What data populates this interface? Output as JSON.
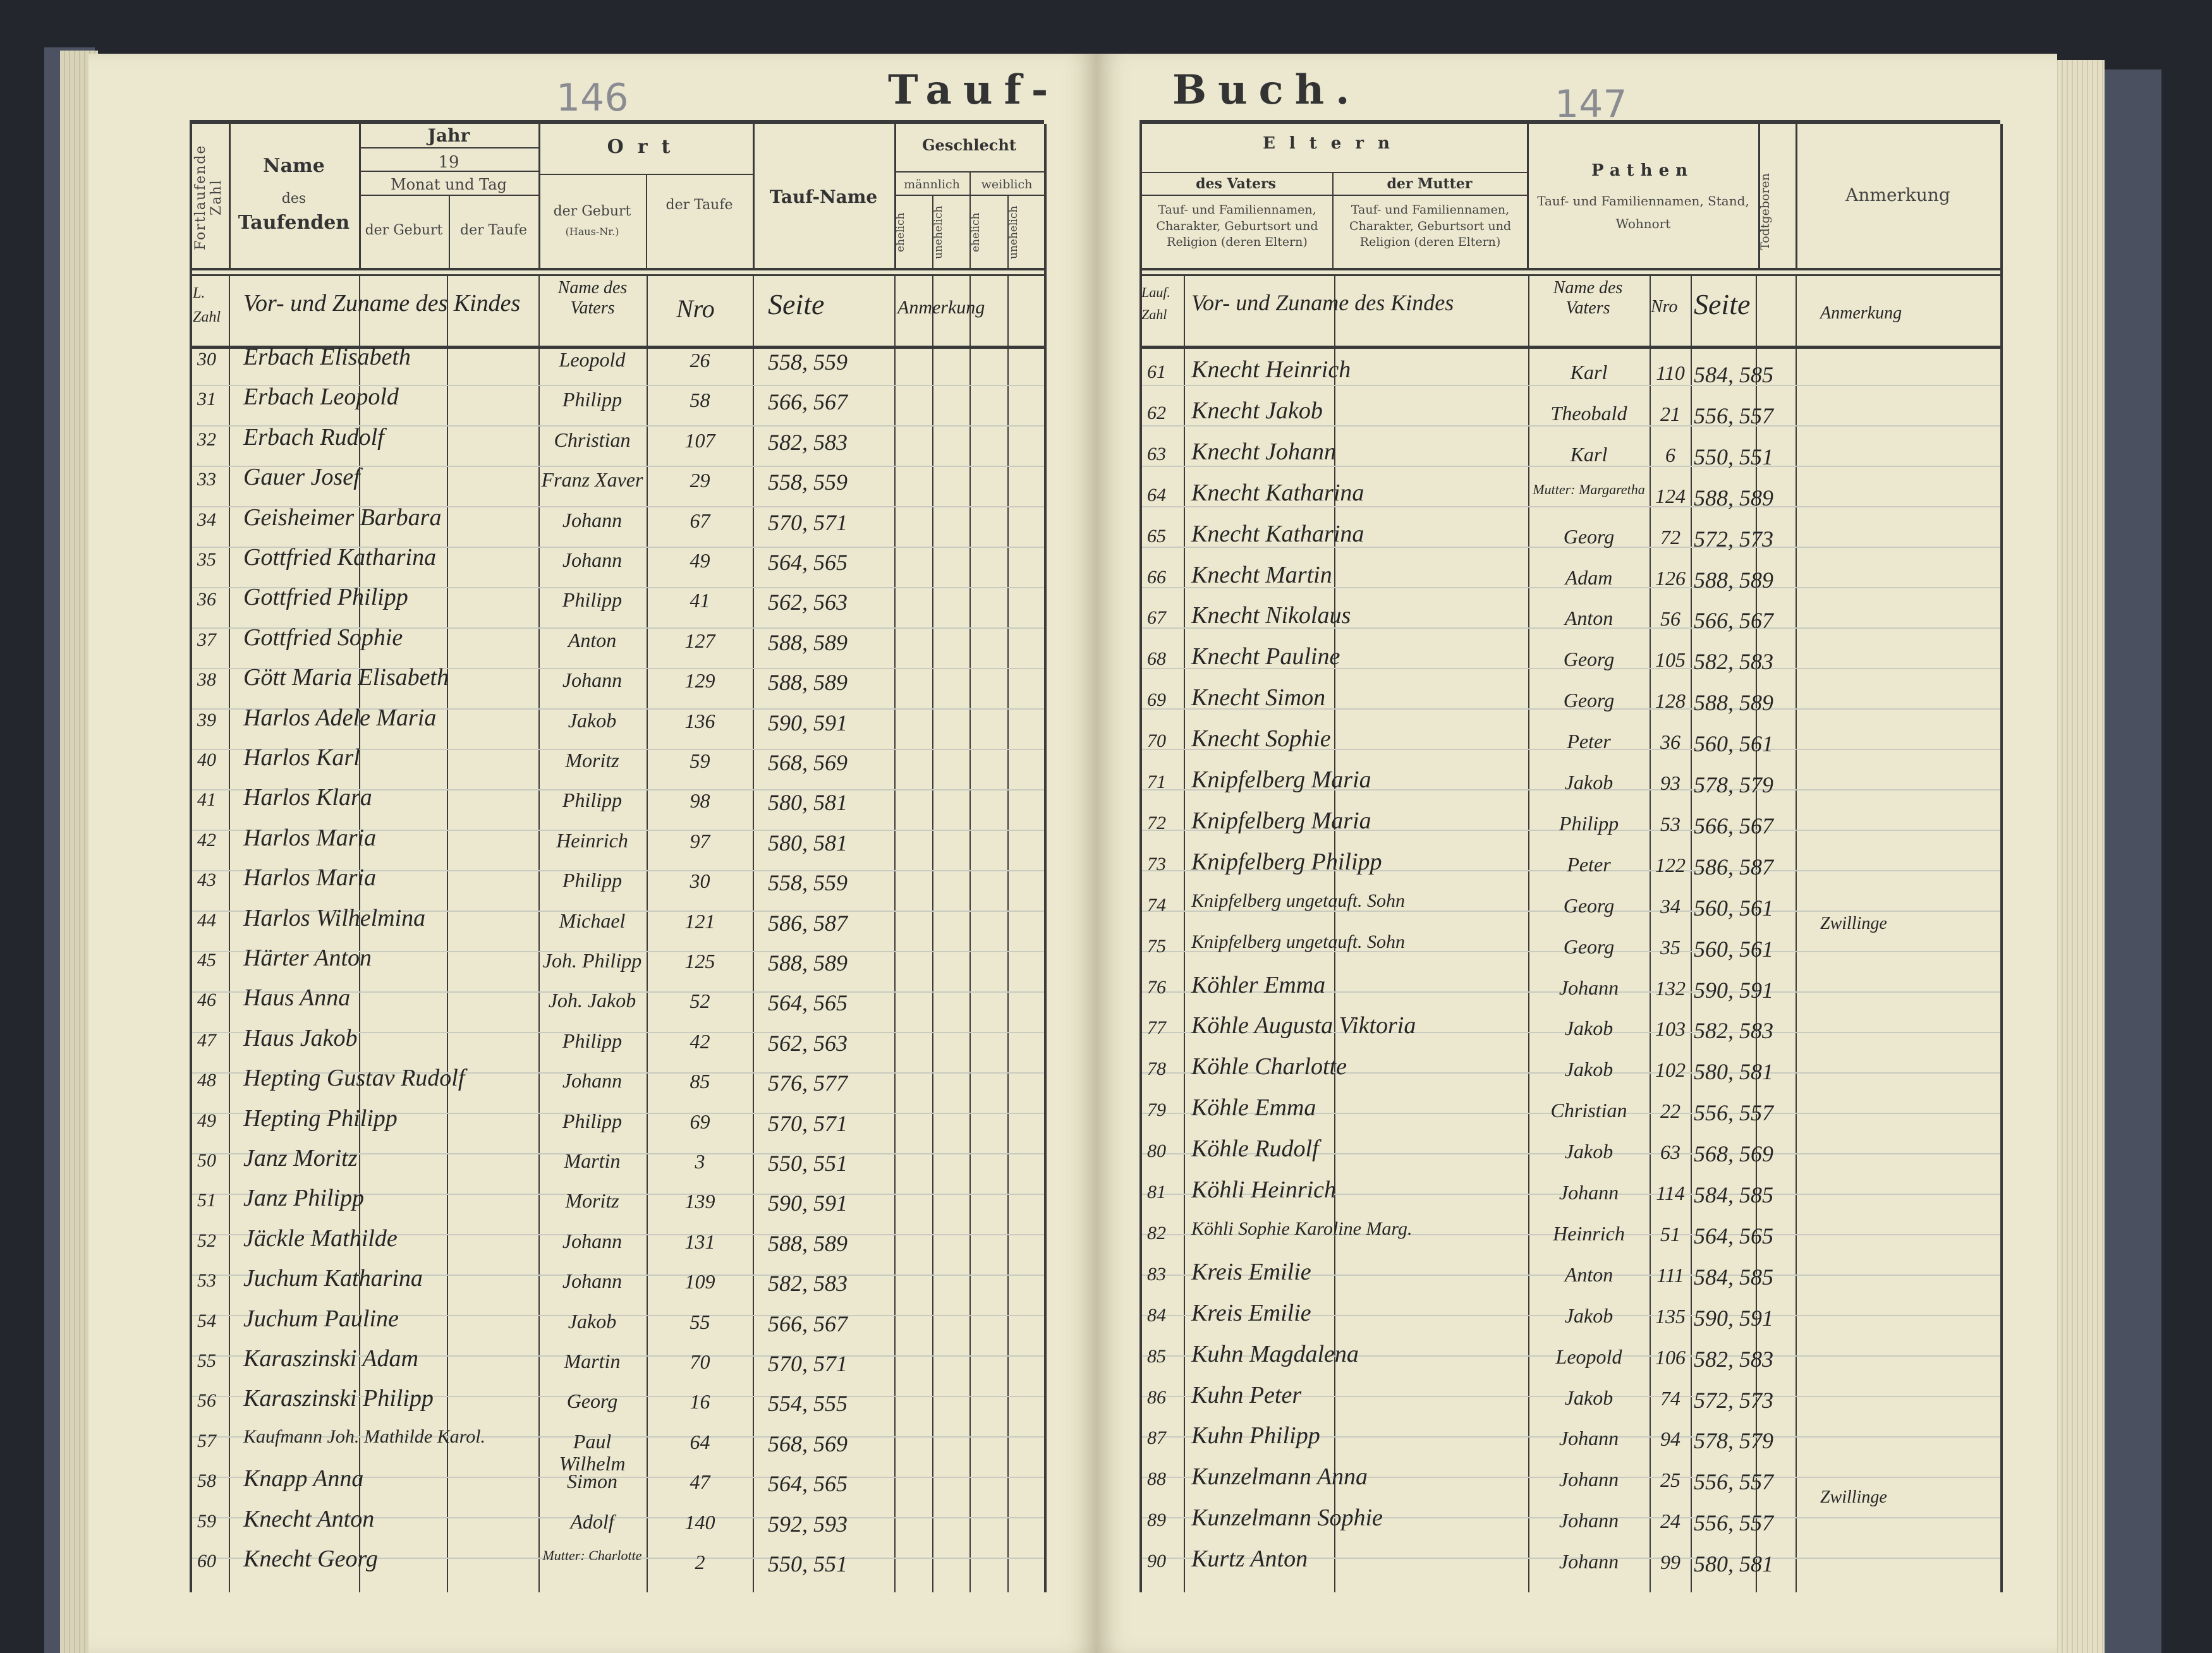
{
  "book_title": {
    "left": "Tauf-",
    "right": "Buch."
  },
  "page_numbers": {
    "left": "146",
    "right": "147"
  },
  "left_header": {
    "col_zahl": "Fortlaufende Zahl",
    "col_name": {
      "line1": "Name",
      "line2": "des",
      "line3": "Taufenden"
    },
    "col_jahr": {
      "title": "Jahr",
      "year": "19",
      "sub": "Monat und Tag",
      "geburt": "der Geburt",
      "taufe": "der Taufe"
    },
    "col_ort": {
      "title": "Ort",
      "geburt": "der Geburt",
      "hausnr": "(Haus-Nr.)",
      "taufe": "der Taufe"
    },
    "col_taufname": "Tauf-Name",
    "col_geschlecht": {
      "title": "Geschlecht",
      "m": "männlich",
      "w": "weiblich",
      "m_ehe": "ehelich",
      "m_unehe": "unehelich",
      "w_ehe": "ehelich",
      "w_unehe": "unehelich"
    }
  },
  "right_header": {
    "col_eltern": "Eltern",
    "col_vater": "des Vaters",
    "col_mutter": "der Mutter",
    "col_vater_desc": "Tauf- und Familiennamen, Charakter, Geburtsort und Religion (deren Eltern)",
    "col_mutter_desc": "Tauf- und Familiennamen, Charakter, Geburtsort und Religion (deren Eltern)",
    "col_pathen": "Pathen",
    "col_pathen_desc": "Tauf- und Familiennamen, Stand, Wohnort",
    "col_todt": "Todtgeboren",
    "col_anmerkung": "Anmerkung"
  },
  "left_hand_header": {
    "zahl": "L. Zahl",
    "name": "Vor- und Zuname des Kindes",
    "vater": "Name des Vaters",
    "nro": "Nro",
    "seite": "Seite",
    "anm": "Anmerkung"
  },
  "right_hand_header": {
    "zahl": "Lauf. Zahl",
    "name": "Vor- und Zuname des Kindes",
    "vater": "Name des Vaters",
    "nro": "Nro",
    "seite": "Seite",
    "anm": "Anmerkung"
  },
  "left_rows": [
    {
      "n": "30",
      "name": "Erbach Elisabeth",
      "vater": "Leopold",
      "nro": "26",
      "seite": "558, 559"
    },
    {
      "n": "31",
      "name": "Erbach Leopold",
      "vater": "Philipp",
      "nro": "58",
      "seite": "566, 567"
    },
    {
      "n": "32",
      "name": "Erbach Rudolf",
      "vater": "Christian",
      "nro": "107",
      "seite": "582, 583"
    },
    {
      "n": "33",
      "name": "Gauer Josef",
      "vater": "Franz Xaver",
      "nro": "29",
      "seite": "558, 559"
    },
    {
      "n": "34",
      "name": "Geisheimer Barbara",
      "vater": "Johann",
      "nro": "67",
      "seite": "570, 571"
    },
    {
      "n": "35",
      "name": "Gottfried Katharina",
      "vater": "Johann",
      "nro": "49",
      "seite": "564, 565"
    },
    {
      "n": "36",
      "name": "Gottfried Philipp",
      "vater": "Philipp",
      "nro": "41",
      "seite": "562, 563"
    },
    {
      "n": "37",
      "name": "Gottfried Sophie",
      "vater": "Anton",
      "nro": "127",
      "seite": "588, 589"
    },
    {
      "n": "38",
      "name": "Gött Maria Elisabeth",
      "vater": "Johann",
      "nro": "129",
      "seite": "588, 589"
    },
    {
      "n": "39",
      "name": "Harlos Adele Maria",
      "vater": "Jakob",
      "nro": "136",
      "seite": "590, 591"
    },
    {
      "n": "40",
      "name": "Harlos Karl",
      "vater": "Moritz",
      "nro": "59",
      "seite": "568, 569"
    },
    {
      "n": "41",
      "name": "Harlos Klara",
      "vater": "Philipp",
      "nro": "98",
      "seite": "580, 581"
    },
    {
      "n": "42",
      "name": "Harlos Maria",
      "vater": "Heinrich",
      "nro": "97",
      "seite": "580, 581"
    },
    {
      "n": "43",
      "name": "Harlos Maria",
      "vater": "Philipp",
      "nro": "30",
      "seite": "558, 559"
    },
    {
      "n": "44",
      "name": "Harlos Wilhelmina",
      "vater": "Michael",
      "nro": "121",
      "seite": "586, 587"
    },
    {
      "n": "45",
      "name": "Härter Anton",
      "vater": "Joh. Philipp",
      "nro": "125",
      "seite": "588, 589"
    },
    {
      "n": "46",
      "name": "Haus Anna",
      "vater": "Joh. Jakob",
      "nro": "52",
      "seite": "564, 565"
    },
    {
      "n": "47",
      "name": "Haus Jakob",
      "vater": "Philipp",
      "nro": "42",
      "seite": "562, 563"
    },
    {
      "n": "48",
      "name": "Hepting Gustav Rudolf",
      "vater": "Johann",
      "nro": "85",
      "seite": "576, 577"
    },
    {
      "n": "49",
      "name": "Hepting Philipp",
      "vater": "Philipp",
      "nro": "69",
      "seite": "570, 571"
    },
    {
      "n": "50",
      "name": "Janz Moritz",
      "vater": "Martin",
      "nro": "3",
      "seite": "550, 551"
    },
    {
      "n": "51",
      "name": "Janz Philipp",
      "vater": "Moritz",
      "nro": "139",
      "seite": "590, 591"
    },
    {
      "n": "52",
      "name": "Jäckle Mathilde",
      "vater": "Johann",
      "nro": "131",
      "seite": "588, 589"
    },
    {
      "n": "53",
      "name": "Juchum Katharina",
      "vater": "Johann",
      "nro": "109",
      "seite": "582, 583"
    },
    {
      "n": "54",
      "name": "Juchum Pauline",
      "vater": "Jakob",
      "nro": "55",
      "seite": "566, 567"
    },
    {
      "n": "55",
      "name": "Karaszinski Adam",
      "vater": "Martin",
      "nro": "70",
      "seite": "570, 571"
    },
    {
      "n": "56",
      "name": "Karaszinski Philipp",
      "vater": "Georg",
      "nro": "16",
      "seite": "554, 555"
    },
    {
      "n": "57",
      "name": "Kaufmann Joh. Mathilde Karol.",
      "vater": "Paul Wilhelm",
      "nro": "64",
      "seite": "568, 569"
    },
    {
      "n": "58",
      "name": "Knapp Anna",
      "vater": "Simon",
      "nro": "47",
      "seite": "564, 565"
    },
    {
      "n": "59",
      "name": "Knecht Anton",
      "vater": "Adolf",
      "nro": "140",
      "seite": "592, 593"
    },
    {
      "n": "60",
      "name": "Knecht Georg",
      "vater": "Mutter: Charlotte",
      "nro": "2",
      "seite": "550, 551"
    }
  ],
  "right_rows": [
    {
      "n": "61",
      "name": "Knecht Heinrich",
      "vater": "Karl",
      "nro": "110",
      "seite": "584, 585"
    },
    {
      "n": "62",
      "name": "Knecht Jakob",
      "vater": "Theobald",
      "nro": "21",
      "seite": "556, 557"
    },
    {
      "n": "63",
      "name": "Knecht Johann",
      "vater": "Karl",
      "nro": "6",
      "seite": "550, 551"
    },
    {
      "n": "64",
      "name": "Knecht Katharina",
      "vater": "Mutter: Margaretha",
      "nro": "124",
      "seite": "588, 589"
    },
    {
      "n": "65",
      "name": "Knecht Katharina",
      "vater": "Georg",
      "nro": "72",
      "seite": "572, 573"
    },
    {
      "n": "66",
      "name": "Knecht Martin",
      "vater": "Adam",
      "nro": "126",
      "seite": "588, 589"
    },
    {
      "n": "67",
      "name": "Knecht Nikolaus",
      "vater": "Anton",
      "nro": "56",
      "seite": "566, 567"
    },
    {
      "n": "68",
      "name": "Knecht Pauline",
      "vater": "Georg",
      "nro": "105",
      "seite": "582, 583"
    },
    {
      "n": "69",
      "name": "Knecht Simon",
      "vater": "Georg",
      "nro": "128",
      "seite": "588, 589"
    },
    {
      "n": "70",
      "name": "Knecht Sophie",
      "vater": "Peter",
      "nro": "36",
      "seite": "560, 561"
    },
    {
      "n": "71",
      "name": "Knipfelberg Maria",
      "vater": "Jakob",
      "nro": "93",
      "seite": "578, 579"
    },
    {
      "n": "72",
      "name": "Knipfelberg Maria",
      "vater": "Philipp",
      "nro": "53",
      "seite": "566, 567"
    },
    {
      "n": "73",
      "name": "Knipfelberg Philipp",
      "vater": "Peter",
      "nro": "122",
      "seite": "586, 587"
    },
    {
      "n": "74",
      "name": "Knipfelberg ungetauft. Sohn",
      "vater": "Georg",
      "nro": "34",
      "seite": "560, 561",
      "anm": "Zwillinge"
    },
    {
      "n": "75",
      "name": "Knipfelberg ungetauft. Sohn",
      "vater": "Georg",
      "nro": "35",
      "seite": "560, 561"
    },
    {
      "n": "76",
      "name": "Köhler Emma",
      "vater": "Johann",
      "nro": "132",
      "seite": "590, 591"
    },
    {
      "n": "77",
      "name": "Köhle Augusta Viktoria",
      "vater": "Jakob",
      "nro": "103",
      "seite": "582, 583"
    },
    {
      "n": "78",
      "name": "Köhle Charlotte",
      "vater": "Jakob",
      "nro": "102",
      "seite": "580, 581"
    },
    {
      "n": "79",
      "name": "Köhle Emma",
      "vater": "Christian",
      "nro": "22",
      "seite": "556, 557"
    },
    {
      "n": "80",
      "name": "Köhle Rudolf",
      "vater": "Jakob",
      "nro": "63",
      "seite": "568, 569"
    },
    {
      "n": "81",
      "name": "Köhli Heinrich",
      "vater": "Johann",
      "nro": "114",
      "seite": "584, 585"
    },
    {
      "n": "82",
      "name": "Köhli Sophie Karoline Marg.",
      "vater": "Heinrich",
      "nro": "51",
      "seite": "564, 565"
    },
    {
      "n": "83",
      "name": "Kreis Emilie",
      "vater": "Anton",
      "nro": "111",
      "seite": "584, 585"
    },
    {
      "n": "84",
      "name": "Kreis Emilie",
      "vater": "Jakob",
      "nro": "135",
      "seite": "590, 591"
    },
    {
      "n": "85",
      "name": "Kuhn Magdalena",
      "vater": "Leopold",
      "nro": "106",
      "seite": "582, 583"
    },
    {
      "n": "86",
      "name": "Kuhn Peter",
      "vater": "Jakob",
      "nro": "74",
      "seite": "572, 573"
    },
    {
      "n": "87",
      "name": "Kuhn Philipp",
      "vater": "Johann",
      "nro": "94",
      "seite": "578, 579"
    },
    {
      "n": "88",
      "name": "Kunzelmann Anna",
      "vater": "Johann",
      "nro": "25",
      "seite": "556, 557",
      "anm": "Zwillinge"
    },
    {
      "n": "89",
      "name": "Kunzelmann Sophie",
      "vater": "Johann",
      "nro": "24",
      "seite": "556, 557"
    },
    {
      "n": "90",
      "name": "Kurtz Anton",
      "vater": "Johann",
      "nro": "99",
      "seite": "580, 581"
    }
  ]
}
